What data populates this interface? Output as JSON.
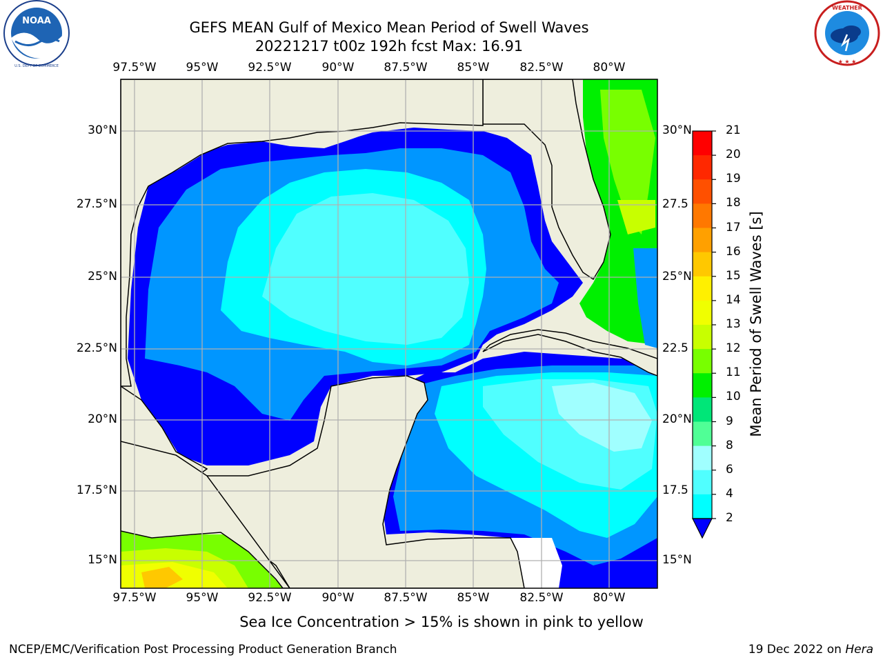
{
  "title": {
    "line1": "GEFS MEAN Gulf of Mexico Mean Period of Swell Waves",
    "line2": "20221217 t00z 192h fcst   Max: 16.91"
  },
  "logos": {
    "noaa": {
      "text": "NOAA",
      "ring_text": "NATIONAL OCEANIC AND ATMOSPHERIC ADMINISTRATION · U.S. DEPARTMENT OF COMMERCE"
    },
    "nws": {
      "ring_text": "NATIONAL WEATHER SERVICE"
    }
  },
  "map": {
    "lon_labels": [
      "97.5°W",
      "95°W",
      "92.5°W",
      "90°W",
      "87.5°W",
      "85°W",
      "82.5°W",
      "80°W"
    ],
    "lat_labels_left": [
      "30°N",
      "27.5°N",
      "25°N",
      "22.5°N",
      "20°N",
      "17.5°N",
      "15°N"
    ],
    "lat_labels_right": [
      "30°N",
      "27.5",
      "25°N",
      "22.5",
      "20°N",
      "17.5",
      "15°N"
    ],
    "land_color": "#eeeedd",
    "grid_color": "#b0b0b0"
  },
  "colorbar": {
    "label": "Mean Period of Swell Waves [s]",
    "ticks": [
      "21",
      "20",
      "19",
      "18",
      "17",
      "16",
      "15",
      "14",
      "13",
      "12",
      "11",
      "10",
      "9",
      "8",
      "6",
      "4",
      "2"
    ],
    "colors": [
      "#ff0000",
      "#ff2800",
      "#ff5000",
      "#ff7800",
      "#ffa000",
      "#ffc800",
      "#fff000",
      "#f0ff00",
      "#c8ff00",
      "#78ff00",
      "#00f000",
      "#00e678",
      "#50ff96",
      "#a0ffff",
      "#50ffff",
      "#00ffff",
      "#0096ff",
      "#0000ff"
    ]
  },
  "footnote": "Sea Ice Concentration > 15% is shown in pink to yellow",
  "footer": {
    "left": "NCEP/EMC/Verification Post Processing Product Generation Branch",
    "right_date": "19 Dec 2022 on ",
    "right_host": "Hera"
  }
}
